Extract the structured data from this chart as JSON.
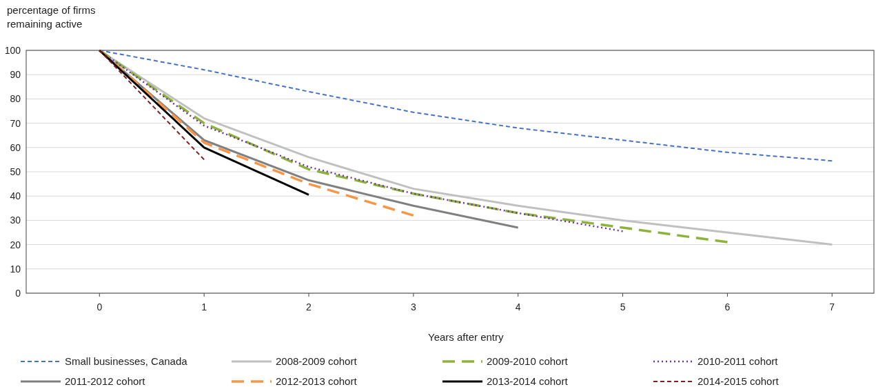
{
  "chart_data": {
    "type": "line",
    "ylabel": "percentage of firms remaining active",
    "xlabel": "Years after entry",
    "xlim": [
      -0.7,
      7.4
    ],
    "xticks": [
      0,
      1,
      2,
      3,
      4,
      5,
      6,
      7
    ],
    "ylim": [
      0,
      100
    ],
    "yticks": [
      0,
      10,
      20,
      30,
      40,
      50,
      60,
      70,
      80,
      90,
      100
    ],
    "grid": "y",
    "legend": "bottom",
    "x": [
      0,
      1,
      2,
      3,
      4,
      5,
      6,
      7
    ],
    "series": [
      {
        "name": "Small businesses, Canada",
        "color": "#4472c4",
        "line_style": "dashed",
        "values": [
          100,
          92,
          83,
          74.5,
          68,
          63,
          58,
          54.5
        ]
      },
      {
        "name": "2008-2009 cohort",
        "color": "#c0c0c0",
        "line_style": "solid",
        "values": [
          100,
          72,
          56,
          43,
          36,
          30,
          25,
          20
        ]
      },
      {
        "name": "2009-2010 cohort",
        "color": "#8db33a",
        "line_style": "longdash",
        "values": [
          100,
          70,
          51,
          41,
          33,
          27,
          21,
          null
        ]
      },
      {
        "name": "2010-2011 cohort",
        "color": "#7030a0",
        "line_style": "dotted",
        "values": [
          100,
          69,
          52,
          41,
          33,
          25.5,
          null,
          null
        ]
      },
      {
        "name": "2011-2012 cohort",
        "color": "#808080",
        "line_style": "solid",
        "values": [
          100,
          63,
          46.5,
          36,
          27,
          null,
          null,
          null
        ]
      },
      {
        "name": "2012-2013 cohort",
        "color": "#f79646",
        "line_style": "longdash",
        "values": [
          100,
          62,
          45,
          32,
          null,
          null,
          null,
          null
        ]
      },
      {
        "name": "2013-2014 cohort",
        "color": "#000000",
        "line_style": "solid",
        "values": [
          100,
          60,
          40.5,
          null,
          null,
          null,
          null,
          null
        ]
      },
      {
        "name": "2014-2015 cohort",
        "color": "#7f1f1f",
        "line_style": "dashed",
        "values": [
          100,
          55,
          null,
          null,
          null,
          null,
          null,
          null
        ]
      }
    ]
  }
}
